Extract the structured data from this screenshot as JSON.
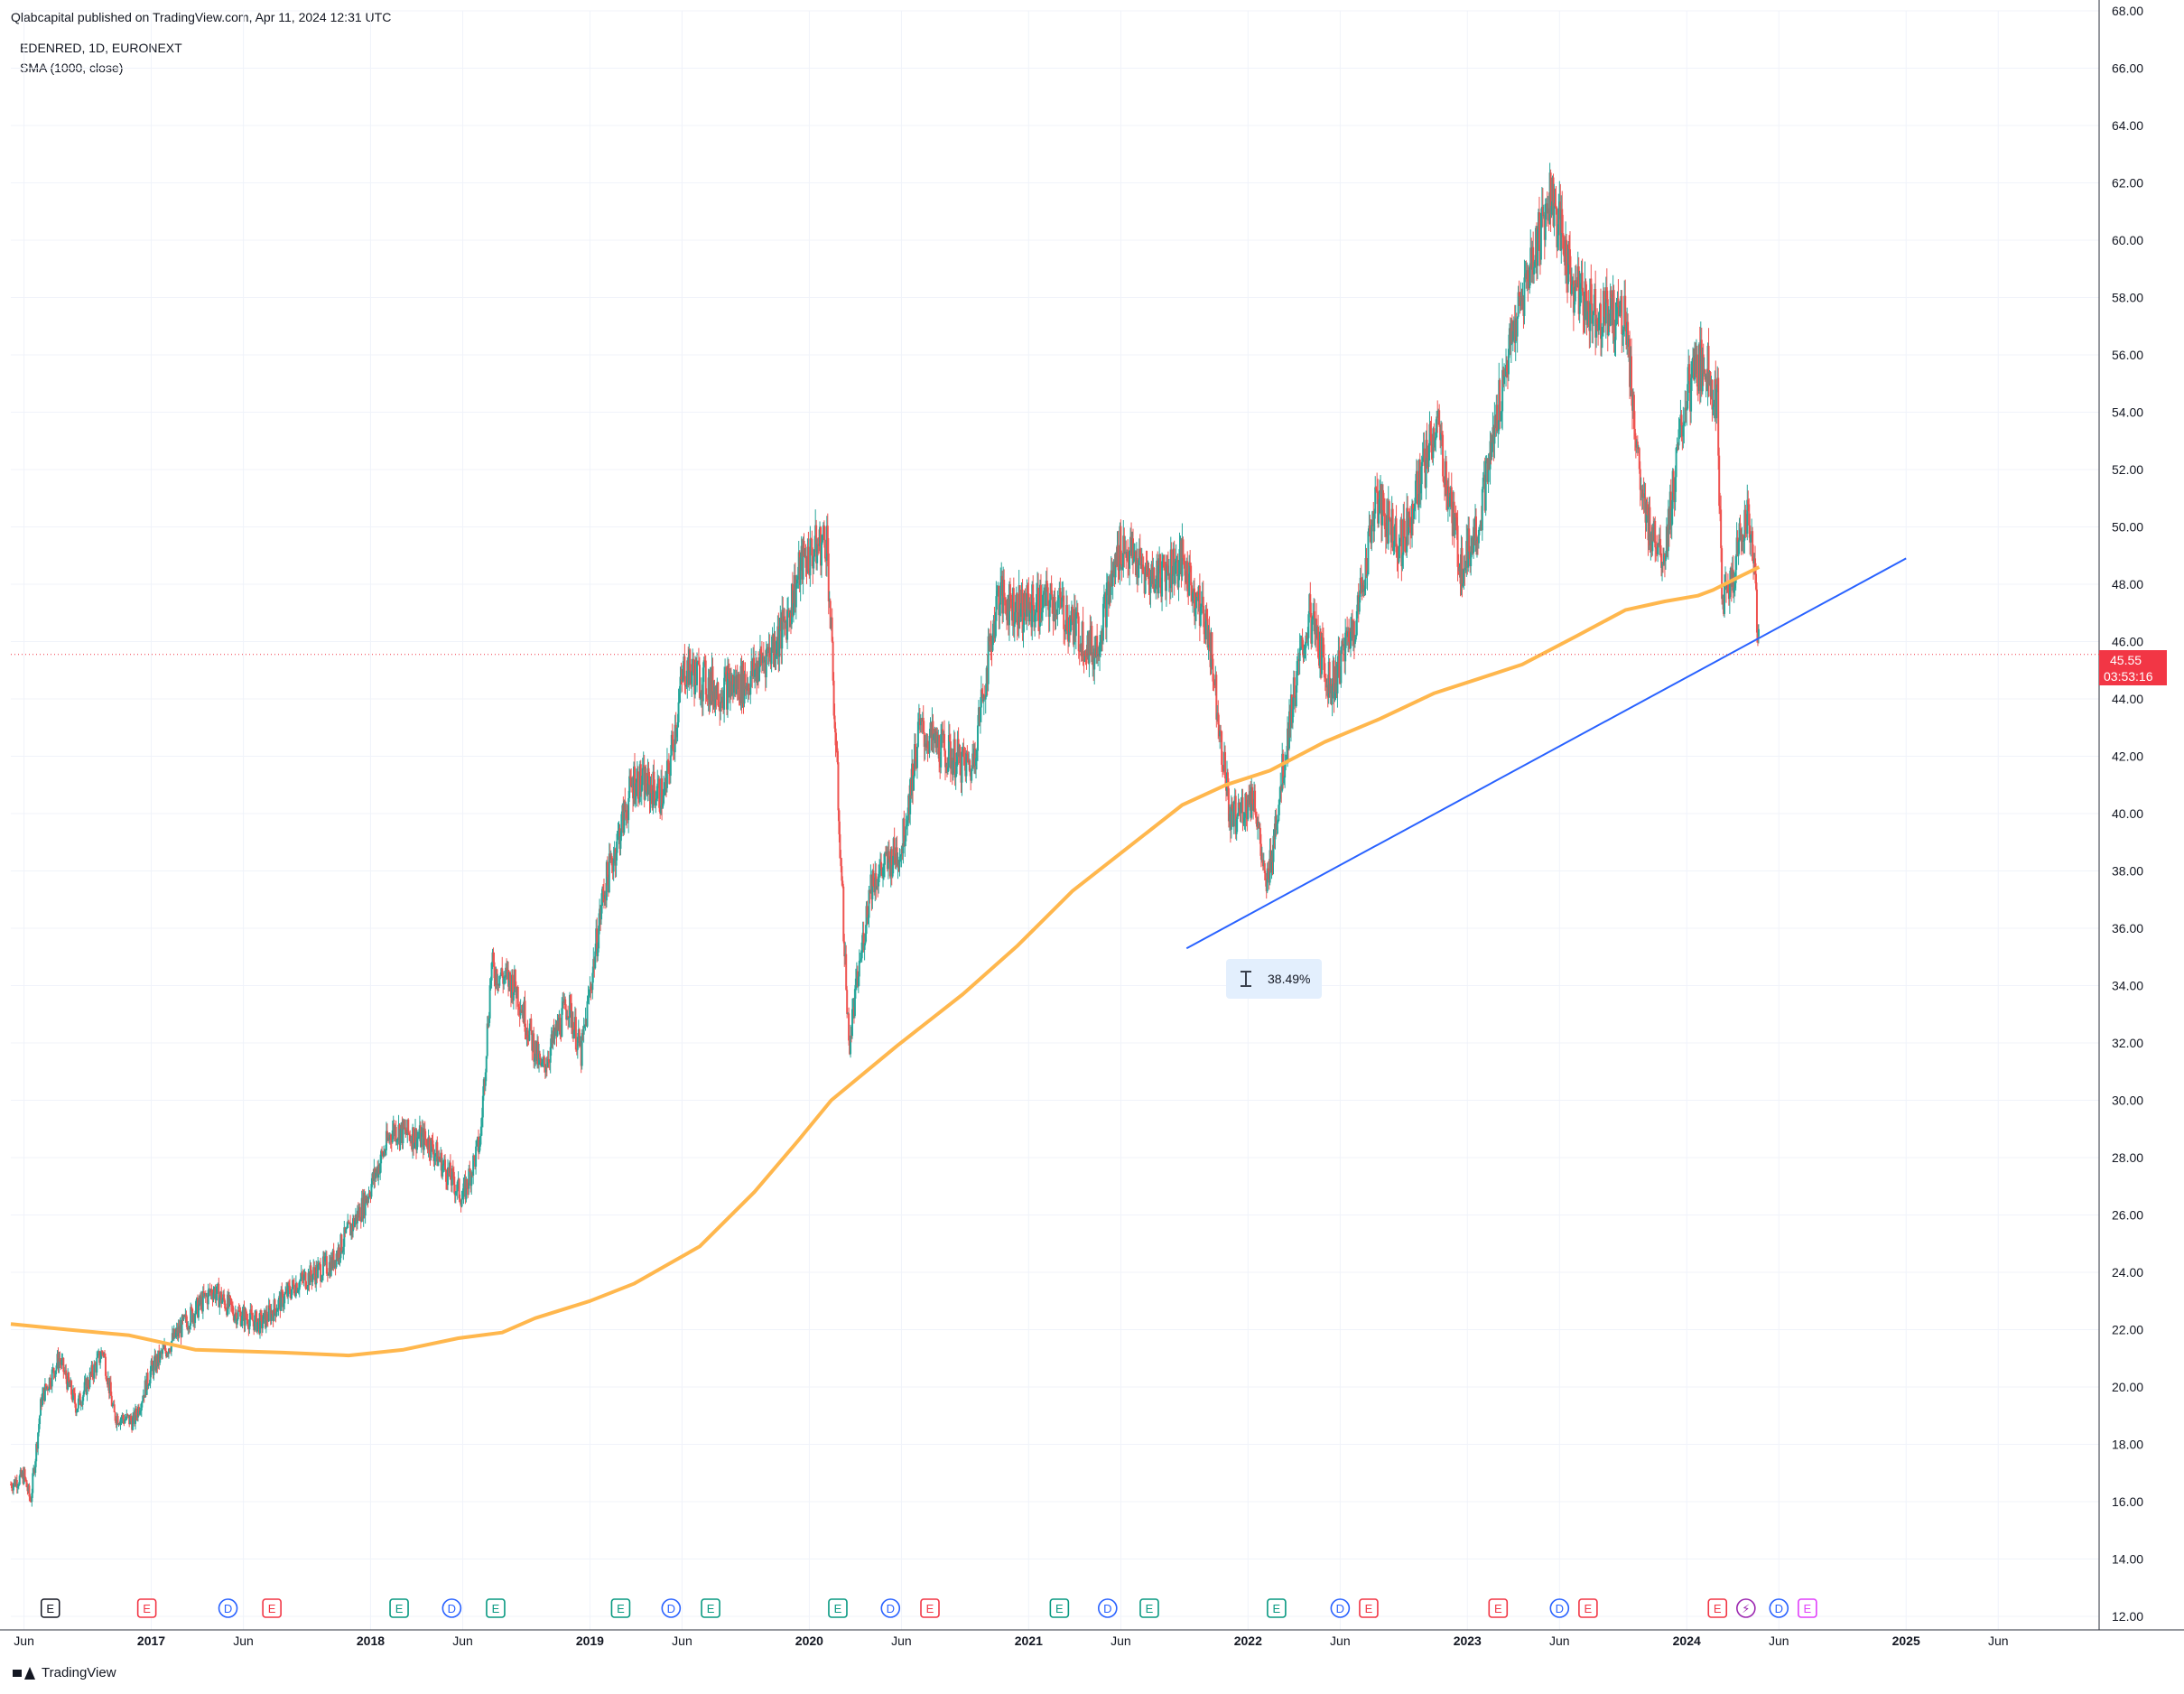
{
  "header": {
    "published": "Qlabcapital published on TradingView.com, Apr 11, 2024 12:31 UTC",
    "symbol": "EDENRED, 1D, EURONEXT",
    "indicator": "SMA (1000, close)"
  },
  "footer": {
    "brand": "TradingView"
  },
  "price_label": {
    "price": "45.55",
    "countdown": "03:53:16"
  },
  "measure_label": {
    "text": "38.49%"
  },
  "colors": {
    "up": "#26a69a",
    "down": "#ef5350",
    "sma": "#ffb74d",
    "trendline": "#2962ff",
    "price_tag": "#f23645",
    "grid": "#f0f3fa",
    "event_earnings_teal": "#089981",
    "event_earnings_red": "#f23645",
    "event_dividend": "#2962ff",
    "event_future_earnings": "#e040fb",
    "event_split": "#9c27b0"
  },
  "chart_data": {
    "type": "candlestick",
    "yaxis": {
      "ticks": [
        "12.00",
        "14.00",
        "16.00",
        "18.00",
        "20.00",
        "22.00",
        "24.00",
        "26.00",
        "28.00",
        "30.00",
        "32.00",
        "34.00",
        "36.00",
        "38.00",
        "40.00",
        "42.00",
        "44.00",
        "46.00",
        "48.00",
        "50.00",
        "52.00",
        "54.00",
        "56.00",
        "58.00",
        "60.00",
        "62.00",
        "64.00",
        "66.00",
        "68.00"
      ],
      "range": [
        12,
        68
      ]
    },
    "xaxis": {
      "ticks": [
        {
          "label": "Jun",
          "t": 2016.42
        },
        {
          "label": "2017",
          "t": 2017.0
        },
        {
          "label": "Jun",
          "t": 2017.42
        },
        {
          "label": "2018",
          "t": 2018.0
        },
        {
          "label": "Jun",
          "t": 2018.42
        },
        {
          "label": "2019",
          "t": 2019.0
        },
        {
          "label": "Jun",
          "t": 2019.42
        },
        {
          "label": "2020",
          "t": 2020.0
        },
        {
          "label": "Jun",
          "t": 2020.42
        },
        {
          "label": "2021",
          "t": 2021.0
        },
        {
          "label": "Jun",
          "t": 2021.42
        },
        {
          "label": "2022",
          "t": 2022.0
        },
        {
          "label": "Jun",
          "t": 2022.42
        },
        {
          "label": "2023",
          "t": 2023.0
        },
        {
          "label": "Jun",
          "t": 2023.42
        },
        {
          "label": "2024",
          "t": 2024.0
        },
        {
          "label": "Jun",
          "t": 2024.42
        },
        {
          "label": "2025",
          "t": 2025.0
        },
        {
          "label": "Jun",
          "t": 2025.42
        }
      ],
      "bold": [
        "2017",
        "2018",
        "2019",
        "2020",
        "2021",
        "2022",
        "2023",
        "2024",
        "2025"
      ],
      "range": [
        2016.36,
        2025.88
      ]
    },
    "price_points": [
      [
        2016.36,
        16.6
      ],
      [
        2016.42,
        16.9
      ],
      [
        2016.45,
        16.0
      ],
      [
        2016.5,
        19.6
      ],
      [
        2016.58,
        21.0
      ],
      [
        2016.66,
        19.3
      ],
      [
        2016.78,
        21.3
      ],
      [
        2016.83,
        19.0
      ],
      [
        2016.92,
        18.8
      ],
      [
        2017.0,
        20.6
      ],
      [
        2017.15,
        22.2
      ],
      [
        2017.28,
        23.4
      ],
      [
        2017.38,
        22.6
      ],
      [
        2017.5,
        22.2
      ],
      [
        2017.66,
        23.6
      ],
      [
        2017.82,
        24.3
      ],
      [
        2017.97,
        26.4
      ],
      [
        2018.1,
        29.0
      ],
      [
        2018.26,
        28.6
      ],
      [
        2018.42,
        26.6
      ],
      [
        2018.5,
        28.6
      ],
      [
        2018.55,
        34.6
      ],
      [
        2018.66,
        34.0
      ],
      [
        2018.78,
        31.0
      ],
      [
        2018.9,
        33.4
      ],
      [
        2018.96,
        31.6
      ],
      [
        2019.06,
        37.2
      ],
      [
        2019.2,
        41.2
      ],
      [
        2019.34,
        40.6
      ],
      [
        2019.43,
        45.1
      ],
      [
        2019.58,
        44.3
      ],
      [
        2019.72,
        44.6
      ],
      [
        2019.88,
        46.4
      ],
      [
        2019.97,
        48.8
      ],
      [
        2020.08,
        49.6
      ],
      [
        2020.18,
        31.9
      ],
      [
        2020.28,
        37.6
      ],
      [
        2020.42,
        38.8
      ],
      [
        2020.5,
        42.9
      ],
      [
        2020.62,
        42.1
      ],
      [
        2020.74,
        41.6
      ],
      [
        2020.86,
        47.6
      ],
      [
        2020.97,
        47.1
      ],
      [
        2021.12,
        47.4
      ],
      [
        2021.3,
        45.6
      ],
      [
        2021.42,
        49.4
      ],
      [
        2021.55,
        48.2
      ],
      [
        2021.7,
        48.8
      ],
      [
        2021.82,
        46.4
      ],
      [
        2021.92,
        39.8
      ],
      [
        2022.03,
        40.6
      ],
      [
        2022.08,
        37.2
      ],
      [
        2022.2,
        43.8
      ],
      [
        2022.28,
        46.9
      ],
      [
        2022.38,
        44.4
      ],
      [
        2022.5,
        47.0
      ],
      [
        2022.58,
        50.9
      ],
      [
        2022.7,
        49.4
      ],
      [
        2022.86,
        53.6
      ],
      [
        2022.97,
        48.6
      ],
      [
        2023.06,
        50.4
      ],
      [
        2023.17,
        55.4
      ],
      [
        2023.27,
        58.6
      ],
      [
        2023.38,
        61.6
      ],
      [
        2023.48,
        58.4
      ],
      [
        2023.58,
        57.5
      ],
      [
        2023.72,
        57.4
      ],
      [
        2023.8,
        50.4
      ],
      [
        2023.9,
        49.2
      ],
      [
        2024.0,
        54.6
      ],
      [
        2024.08,
        55.9
      ],
      [
        2024.14,
        54.4
      ],
      [
        2024.16,
        47.1
      ],
      [
        2024.22,
        48.6
      ],
      [
        2024.27,
        50.6
      ],
      [
        2024.3,
        49.4
      ],
      [
        2024.33,
        45.55
      ]
    ],
    "sma_points": [
      [
        2016.36,
        22.2
      ],
      [
        2016.62,
        22.0
      ],
      [
        2016.9,
        21.8
      ],
      [
        2017.2,
        21.3
      ],
      [
        2017.6,
        21.2
      ],
      [
        2017.9,
        21.1
      ],
      [
        2018.15,
        21.3
      ],
      [
        2018.4,
        21.7
      ],
      [
        2018.6,
        21.9
      ],
      [
        2018.75,
        22.4
      ],
      [
        2019.0,
        23.0
      ],
      [
        2019.2,
        23.6
      ],
      [
        2019.5,
        24.9
      ],
      [
        2019.75,
        26.8
      ],
      [
        2019.95,
        28.6
      ],
      [
        2020.1,
        30.0
      ],
      [
        2020.4,
        31.9
      ],
      [
        2020.7,
        33.7
      ],
      [
        2020.95,
        35.4
      ],
      [
        2021.2,
        37.3
      ],
      [
        2021.45,
        38.8
      ],
      [
        2021.7,
        40.3
      ],
      [
        2021.9,
        41.0
      ],
      [
        2022.1,
        41.5
      ],
      [
        2022.35,
        42.5
      ],
      [
        2022.6,
        43.3
      ],
      [
        2022.85,
        44.2
      ],
      [
        2023.05,
        44.7
      ],
      [
        2023.25,
        45.2
      ],
      [
        2023.5,
        46.2
      ],
      [
        2023.72,
        47.1
      ],
      [
        2023.9,
        47.4
      ],
      [
        2024.05,
        47.6
      ],
      [
        2024.12,
        47.8
      ],
      [
        2024.25,
        48.3
      ],
      [
        2024.33,
        48.6
      ]
    ],
    "trendline": [
      [
        2021.72,
        35.3
      ],
      [
        2025.0,
        48.9
      ]
    ],
    "events": [
      {
        "t": 2016.54,
        "label": "E",
        "kind": "box"
      },
      {
        "t": 2016.98,
        "label": "E",
        "kind": "earn_red"
      },
      {
        "t": 2017.35,
        "label": "D",
        "kind": "div"
      },
      {
        "t": 2017.55,
        "label": "E",
        "kind": "earn_red"
      },
      {
        "t": 2018.13,
        "label": "E",
        "kind": "earn_teal"
      },
      {
        "t": 2018.37,
        "label": "D",
        "kind": "div"
      },
      {
        "t": 2018.57,
        "label": "E",
        "kind": "earn_teal"
      },
      {
        "t": 2019.14,
        "label": "E",
        "kind": "earn_teal"
      },
      {
        "t": 2019.37,
        "label": "D",
        "kind": "div"
      },
      {
        "t": 2019.55,
        "label": "E",
        "kind": "earn_teal"
      },
      {
        "t": 2020.13,
        "label": "E",
        "kind": "earn_teal"
      },
      {
        "t": 2020.37,
        "label": "D",
        "kind": "div"
      },
      {
        "t": 2020.55,
        "label": "E",
        "kind": "earn_red"
      },
      {
        "t": 2021.14,
        "label": "E",
        "kind": "earn_teal"
      },
      {
        "t": 2021.36,
        "label": "D",
        "kind": "div"
      },
      {
        "t": 2021.55,
        "label": "E",
        "kind": "earn_teal"
      },
      {
        "t": 2022.13,
        "label": "E",
        "kind": "earn_teal"
      },
      {
        "t": 2022.42,
        "label": "D",
        "kind": "div"
      },
      {
        "t": 2022.55,
        "label": "E",
        "kind": "earn_red"
      },
      {
        "t": 2023.14,
        "label": "E",
        "kind": "earn_red"
      },
      {
        "t": 2023.42,
        "label": "D",
        "kind": "div"
      },
      {
        "t": 2023.55,
        "label": "E",
        "kind": "earn_red"
      },
      {
        "t": 2024.14,
        "label": "E",
        "kind": "earn_red"
      },
      {
        "t": 2024.27,
        "label": "⚡",
        "kind": "split"
      },
      {
        "t": 2024.42,
        "label": "D",
        "kind": "div"
      },
      {
        "t": 2024.55,
        "label": "E",
        "kind": "future"
      }
    ]
  }
}
